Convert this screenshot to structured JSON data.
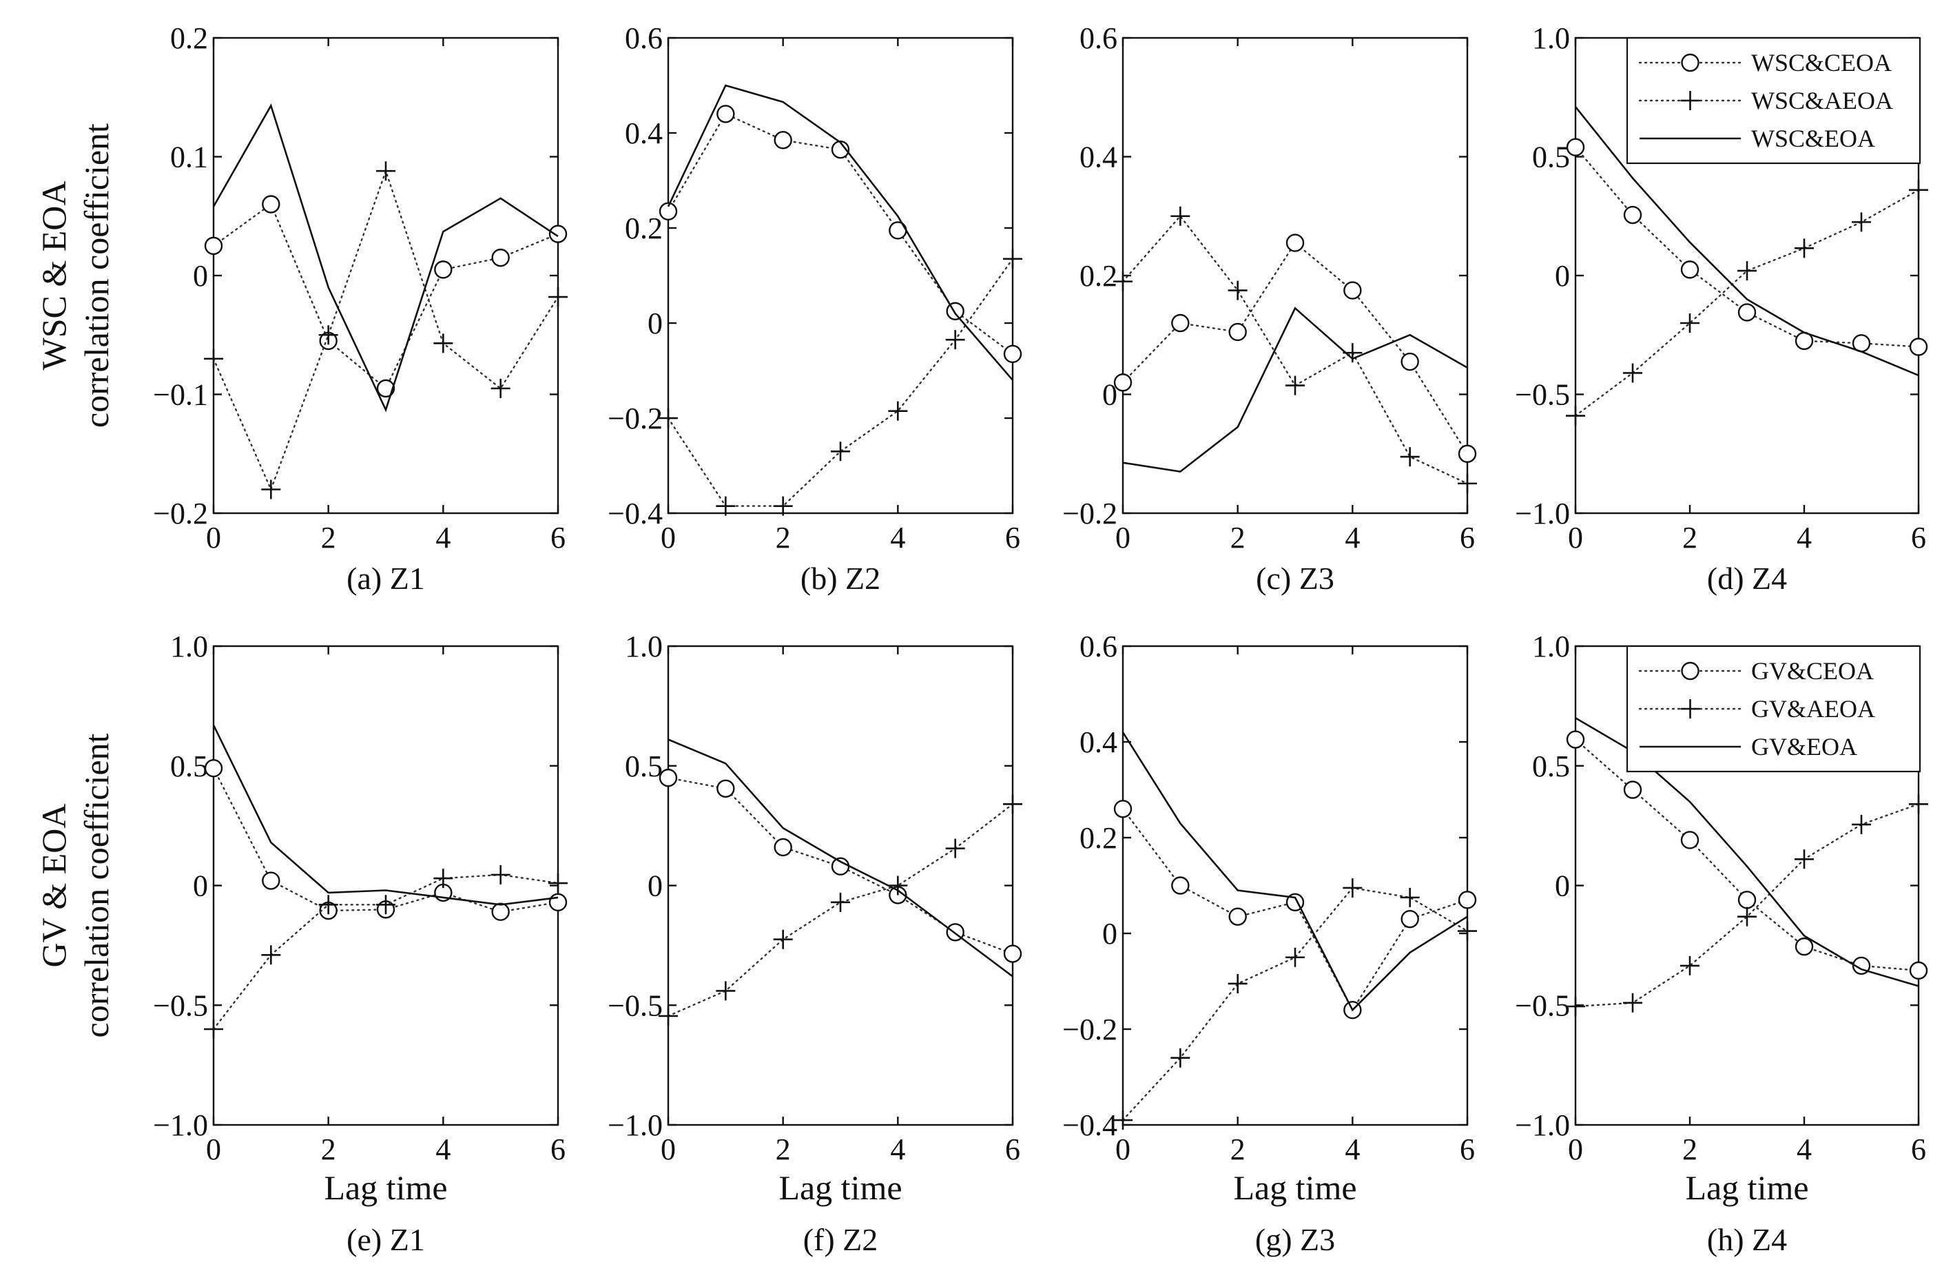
{
  "chart_data": [
    {
      "id": "a",
      "type": "line",
      "caption": "(a) Z1",
      "ylabel_lines": [
        "WSC & EOA",
        "correlation coefficient"
      ],
      "xlabel": "",
      "x": [
        0,
        1,
        2,
        3,
        4,
        5,
        6
      ],
      "ylim": [
        -0.2,
        0.2
      ],
      "yticks": [
        -0.2,
        -0.1,
        0,
        0.1,
        0.2
      ],
      "ytick_labels": [
        "−0.2",
        "−0.1",
        "0",
        "0.1",
        "0.2"
      ],
      "xticks": [
        0,
        2,
        4,
        6
      ],
      "xtick_labels": [
        "0",
        "2",
        "4",
        "6"
      ],
      "legend": [],
      "series": [
        {
          "name": "WSC&CEOA",
          "style": "dotted-circle",
          "values": [
            0.025,
            0.06,
            -0.055,
            -0.095,
            0.005,
            0.015,
            0.035
          ]
        },
        {
          "name": "WSC&AEOA",
          "style": "dotted-plus",
          "values": [
            -0.07,
            -0.18,
            -0.05,
            0.088,
            -0.057,
            -0.095,
            -0.018
          ]
        },
        {
          "name": "WSC&EOA",
          "style": "solid",
          "values": [
            0.058,
            0.143,
            -0.01,
            -0.113,
            0.037,
            0.065,
            0.033
          ]
        }
      ]
    },
    {
      "id": "b",
      "type": "line",
      "caption": "(b) Z2",
      "ylabel_lines": [],
      "xlabel": "",
      "x": [
        0,
        1,
        2,
        3,
        4,
        5,
        6
      ],
      "ylim": [
        -0.4,
        0.6
      ],
      "yticks": [
        -0.4,
        -0.2,
        0,
        0.2,
        0.4,
        0.6
      ],
      "ytick_labels": [
        "−0.4",
        "−0.2",
        "0",
        "0.2",
        "0.4",
        "0.6"
      ],
      "xticks": [
        0,
        2,
        4,
        6
      ],
      "xtick_labels": [
        "0",
        "2",
        "4",
        "6"
      ],
      "legend": [],
      "series": [
        {
          "name": "WSC&CEOA",
          "style": "dotted-circle",
          "values": [
            0.235,
            0.44,
            0.385,
            0.365,
            0.195,
            0.025,
            -0.065
          ]
        },
        {
          "name": "WSC&AEOA",
          "style": "dotted-plus",
          "values": [
            -0.2,
            -0.385,
            -0.385,
            -0.27,
            -0.185,
            -0.035,
            0.135
          ]
        },
        {
          "name": "WSC&EOA",
          "style": "solid",
          "values": [
            0.245,
            0.5,
            0.465,
            0.38,
            0.225,
            0.02,
            -0.12
          ]
        }
      ]
    },
    {
      "id": "c",
      "type": "line",
      "caption": "(c) Z3",
      "ylabel_lines": [],
      "xlabel": "",
      "x": [
        0,
        1,
        2,
        3,
        4,
        5,
        6
      ],
      "ylim": [
        -0.2,
        0.6
      ],
      "yticks": [
        -0.2,
        0,
        0.2,
        0.4,
        0.6
      ],
      "ytick_labels": [
        "−0.2",
        "0",
        "0.2",
        "0.4",
        "0.6"
      ],
      "xticks": [
        0,
        2,
        4,
        6
      ],
      "xtick_labels": [
        "0",
        "2",
        "4",
        "6"
      ],
      "legend": [],
      "series": [
        {
          "name": "WSC&CEOA",
          "style": "dotted-circle",
          "values": [
            0.02,
            0.12,
            0.105,
            0.255,
            0.175,
            0.055,
            -0.1
          ]
        },
        {
          "name": "WSC&AEOA",
          "style": "dotted-plus",
          "values": [
            0.19,
            0.3,
            0.175,
            0.015,
            0.07,
            -0.105,
            -0.15
          ]
        },
        {
          "name": "WSC&EOA",
          "style": "solid",
          "values": [
            -0.115,
            -0.13,
            -0.055,
            0.145,
            0.06,
            0.1,
            0.045
          ]
        }
      ]
    },
    {
      "id": "d",
      "type": "line",
      "caption": "(d) Z4",
      "ylabel_lines": [],
      "xlabel": "",
      "x": [
        0,
        1,
        2,
        3,
        4,
        5,
        6
      ],
      "ylim": [
        -1.0,
        1.0
      ],
      "yticks": [
        -1.0,
        -0.5,
        0,
        0.5,
        1.0
      ],
      "ytick_labels": [
        "−1.0",
        "−0.5",
        "0",
        "0.5",
        "1.0"
      ],
      "xticks": [
        0,
        2,
        4,
        6
      ],
      "xtick_labels": [
        "0",
        "2",
        "4",
        "6"
      ],
      "legend": [
        "WSC&CEOA",
        "WSC&AEOA",
        "WSC&EOA"
      ],
      "series": [
        {
          "name": "WSC&CEOA",
          "style": "dotted-circle",
          "values": [
            0.54,
            0.255,
            0.025,
            -0.155,
            -0.275,
            -0.285,
            -0.3
          ]
        },
        {
          "name": "WSC&AEOA",
          "style": "dotted-plus",
          "values": [
            -0.59,
            -0.41,
            -0.2,
            0.02,
            0.115,
            0.225,
            0.36
          ]
        },
        {
          "name": "WSC&EOA",
          "style": "solid",
          "values": [
            0.71,
            0.41,
            0.14,
            -0.1,
            -0.24,
            -0.32,
            -0.42
          ]
        }
      ]
    },
    {
      "id": "e",
      "type": "line",
      "caption": "(e) Z1",
      "ylabel_lines": [
        "GV & EOA",
        "correlation coefficient"
      ],
      "xlabel": "Lag time",
      "x": [
        0,
        1,
        2,
        3,
        4,
        5,
        6
      ],
      "ylim": [
        -1.0,
        1.0
      ],
      "yticks": [
        -1.0,
        -0.5,
        0,
        0.5,
        1.0
      ],
      "ytick_labels": [
        "−1.0",
        "−0.5",
        "0",
        "0.5",
        "1.0"
      ],
      "xticks": [
        0,
        2,
        4,
        6
      ],
      "xtick_labels": [
        "0",
        "2",
        "4",
        "6"
      ],
      "legend": [],
      "series": [
        {
          "name": "GV&CEOA",
          "style": "dotted-circle",
          "values": [
            0.49,
            0.02,
            -0.105,
            -0.1,
            -0.03,
            -0.11,
            -0.07
          ]
        },
        {
          "name": "GV&AEOA",
          "style": "dotted-plus",
          "values": [
            -0.6,
            -0.29,
            -0.08,
            -0.08,
            0.03,
            0.045,
            0.01
          ]
        },
        {
          "name": "GV&EOA",
          "style": "solid",
          "values": [
            0.67,
            0.18,
            -0.03,
            -0.02,
            -0.05,
            -0.08,
            -0.05
          ]
        }
      ]
    },
    {
      "id": "f",
      "type": "line",
      "caption": "(f) Z2",
      "ylabel_lines": [],
      "xlabel": "Lag time",
      "x": [
        0,
        1,
        2,
        3,
        4,
        5,
        6
      ],
      "ylim": [
        -1.0,
        1.0
      ],
      "yticks": [
        -1.0,
        -0.5,
        0,
        0.5,
        1.0
      ],
      "ytick_labels": [
        "−1.0",
        "−0.5",
        "0",
        "0.5",
        "1.0"
      ],
      "xticks": [
        0,
        2,
        4,
        6
      ],
      "xtick_labels": [
        "0",
        "2",
        "4",
        "6"
      ],
      "legend": [],
      "series": [
        {
          "name": "GV&CEOA",
          "style": "dotted-circle",
          "values": [
            0.45,
            0.405,
            0.16,
            0.08,
            -0.04,
            -0.195,
            -0.285
          ]
        },
        {
          "name": "GV&AEOA",
          "style": "dotted-plus",
          "values": [
            -0.545,
            -0.44,
            -0.225,
            -0.07,
            0.0,
            0.155,
            0.34
          ]
        },
        {
          "name": "GV&EOA",
          "style": "solid",
          "values": [
            0.61,
            0.51,
            0.24,
            0.1,
            -0.02,
            -0.2,
            -0.38
          ]
        }
      ]
    },
    {
      "id": "g",
      "type": "line",
      "caption": "(g) Z3",
      "ylabel_lines": [],
      "xlabel": "Lag time",
      "x": [
        0,
        1,
        2,
        3,
        4,
        5,
        6
      ],
      "ylim": [
        -0.4,
        0.6
      ],
      "yticks": [
        -0.4,
        -0.2,
        0,
        0.2,
        0.4,
        0.6
      ],
      "ytick_labels": [
        "−0.4",
        "−0.2",
        "0",
        "0.2",
        "0.4",
        "0.6"
      ],
      "xticks": [
        0,
        2,
        4,
        6
      ],
      "xtick_labels": [
        "0",
        "2",
        "4",
        "6"
      ],
      "legend": [],
      "series": [
        {
          "name": "GV&CEOA",
          "style": "dotted-circle",
          "values": [
            0.26,
            0.1,
            0.035,
            0.065,
            -0.16,
            0.03,
            0.07
          ]
        },
        {
          "name": "GV&AEOA",
          "style": "dotted-plus",
          "values": [
            -0.39,
            -0.26,
            -0.105,
            -0.05,
            0.095,
            0.075,
            0.005
          ]
        },
        {
          "name": "GV&EOA",
          "style": "solid",
          "values": [
            0.42,
            0.23,
            0.09,
            0.075,
            -0.16,
            -0.04,
            0.035
          ]
        }
      ]
    },
    {
      "id": "h",
      "type": "line",
      "caption": "(h) Z4",
      "ylabel_lines": [],
      "xlabel": "Lag time",
      "x": [
        0,
        1,
        2,
        3,
        4,
        5,
        6
      ],
      "ylim": [
        -1.0,
        1.0
      ],
      "yticks": [
        -1.0,
        -0.5,
        0,
        0.5,
        1.0
      ],
      "ytick_labels": [
        "−1.0",
        "−0.5",
        "0",
        "0.5",
        "1.0"
      ],
      "xticks": [
        0,
        2,
        4,
        6
      ],
      "xtick_labels": [
        "0",
        "2",
        "4",
        "6"
      ],
      "legend": [
        "GV&CEOA",
        "GV&AEOA",
        "GV&EOA"
      ],
      "series": [
        {
          "name": "GV&CEOA",
          "style": "dotted-circle",
          "values": [
            0.61,
            0.4,
            0.19,
            -0.06,
            -0.255,
            -0.335,
            -0.355
          ]
        },
        {
          "name": "GV&AEOA",
          "style": "dotted-plus",
          "values": [
            -0.505,
            -0.49,
            -0.335,
            -0.13,
            0.11,
            0.255,
            0.34
          ]
        },
        {
          "name": "GV&EOA",
          "style": "solid",
          "values": [
            0.7,
            0.56,
            0.35,
            0.08,
            -0.21,
            -0.35,
            -0.42
          ]
        }
      ]
    }
  ]
}
